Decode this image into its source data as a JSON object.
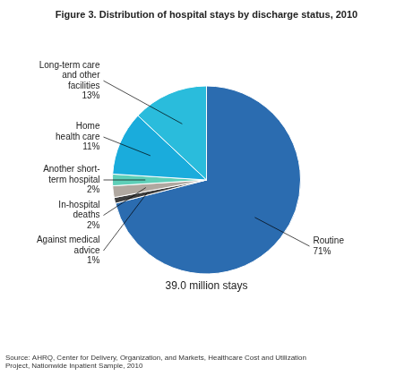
{
  "chart_data": {
    "type": "pie",
    "title": "Figure 3. Distribution of hospital stays by discharge status, 2010",
    "categories": [
      "Routine\n71%",
      "Against medical\nadvice\n1%",
      "In-hospital\ndeaths\n2%",
      "Another short-\nterm hospital\n2%",
      "Home\nhealth care\n11%",
      "Long-term care\nand other\nfacilities\n13%"
    ],
    "values": [
      71,
      1,
      2,
      2,
      11,
      13
    ],
    "colors": [
      "#2B6CB0",
      "#3D3D3D",
      "#B0A8A0",
      "#5ECFB8",
      "#1AACDC",
      "#2ABCDC"
    ],
    "annotations": [
      "39.0 million stays",
      "Source: AHRQ, Center for Delivery, Organization, and Markets, Healthcare Cost and Utilization\nProject, Nationwide Inpatient Sample, 2010"
    ]
  }
}
